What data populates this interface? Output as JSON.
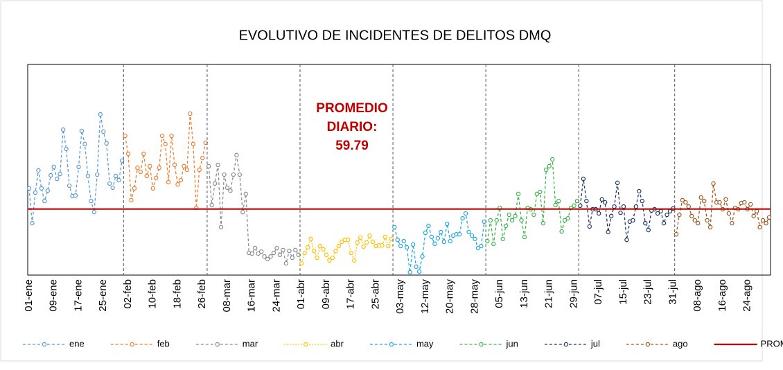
{
  "chart_data": {
    "type": "line",
    "title": "EVOLUTIVO DE INCIDENTES DE DELITOS DMQ",
    "ylim": [
      30,
      125
    ],
    "series": [
      {
        "name": "ene",
        "color": "#5b9bd5",
        "line_style": "dashed",
        "categories": [
          "01-ene",
          null,
          null,
          null,
          null,
          null,
          null,
          null,
          "09-ene",
          null,
          null,
          null,
          null,
          null,
          null,
          null,
          "17-ene",
          null,
          null,
          null,
          null,
          null,
          null,
          null,
          "25-ene",
          null,
          null,
          null,
          null,
          null,
          null
        ],
        "values": [
          69.1,
          53.4,
          67.2,
          77.2,
          69.1,
          63.4,
          68.1,
          75.0,
          78.8,
          73.4,
          75.6,
          95.6,
          86.9,
          70.3,
          65.6,
          65.9,
          78.8,
          95.0,
          89.1,
          74.7,
          63.4,
          58.4,
          75.3,
          102.5,
          94.7,
          89.4,
          71.3,
          69.4,
          74.7,
          72.8,
          81.6
        ]
      },
      {
        "name": "feb",
        "color": "#ed7d31",
        "line_style": "dashed",
        "categories": [
          null,
          "02-feb",
          null,
          null,
          null,
          null,
          null,
          null,
          null,
          "10-feb",
          null,
          null,
          null,
          null,
          null,
          null,
          null,
          "18-feb",
          null,
          null,
          null,
          null,
          null,
          null,
          null,
          "26-feb",
          null
        ],
        "values": [
          92.8,
          84.7,
          63.8,
          69.1,
          78.4,
          76.6,
          84.7,
          74.7,
          79.1,
          69.1,
          73.8,
          78.4,
          92.8,
          89.1,
          71.9,
          92.8,
          79.7,
          70.9,
          72.8,
          79.1,
          77.5,
          102.8,
          89.1,
          60.3,
          77.5,
          82.8,
          89.7
        ]
      },
      {
        "name": "mar",
        "color": "#8c8c8c",
        "line_style": "dashed",
        "categories": [
          null,
          null,
          null,
          null,
          null,
          null,
          "08-mar",
          null,
          null,
          null,
          null,
          null,
          null,
          null,
          "16-mar",
          null,
          null,
          null,
          null,
          null,
          null,
          null,
          "24-mar",
          null,
          null,
          null,
          null,
          null,
          null,
          null
        ],
        "values": [
          79.1,
          61.6,
          71.3,
          79.7,
          51.6,
          75.3,
          69.4,
          68.1,
          75.3,
          84.1,
          75.3,
          58.4,
          66.6,
          40.0,
          39.7,
          42.2,
          39.7,
          40.6,
          38.4,
          37.2,
          38.4,
          40.0,
          42.2,
          39.1,
          41.3,
          35.3,
          40.9,
          37.8,
          41.3,
          39.1
        ]
      },
      {
        "name": "abr",
        "color": "#ffc000",
        "line_style": "dotted",
        "categories": [
          "01-abr",
          null,
          null,
          null,
          null,
          null,
          null,
          null,
          "09-abr",
          null,
          null,
          null,
          null,
          null,
          null,
          null,
          "17-abr",
          null,
          null,
          null,
          null,
          null,
          null,
          null,
          "25-abr",
          null,
          null,
          null,
          null,
          null
        ],
        "values": [
          35.3,
          40.0,
          42.5,
          46.3,
          40.9,
          37.8,
          43.1,
          41.6,
          39.1,
          36.6,
          37.8,
          40.9,
          43.1,
          45.0,
          45.9,
          45.9,
          40.0,
          36.6,
          44.7,
          46.9,
          42.8,
          44.7,
          47.8,
          45.0,
          43.1,
          43.4,
          43.4,
          47.2,
          43.1,
          46.3
        ]
      },
      {
        "name": "may",
        "color": "#1ea7e1",
        "line_style": "dashed",
        "categories": [
          null,
          null,
          "03-may",
          null,
          null,
          null,
          null,
          null,
          null,
          null,
          "12-may",
          null,
          null,
          null,
          null,
          null,
          null,
          null,
          "20-may",
          null,
          null,
          null,
          null,
          null,
          null,
          null,
          "28-may",
          null,
          null,
          null
        ],
        "values": [
          51.6,
          45.9,
          43.1,
          45.3,
          42.5,
          31.3,
          43.8,
          33.8,
          31.6,
          38.4,
          49.1,
          52.2,
          47.2,
          44.1,
          46.6,
          49.4,
          45.0,
          53.1,
          45.3,
          47.8,
          48.4,
          48.4,
          55.6,
          57.8,
          49.4,
          47.8,
          46.3,
          42.2,
          43.1,
          54.1
        ]
      },
      {
        "name": "jun",
        "color": "#3cb44b",
        "line_style": "dashed",
        "categories": [
          null,
          null,
          null,
          null,
          "05-jun",
          null,
          null,
          null,
          null,
          null,
          null,
          null,
          "13-jun",
          null,
          null,
          null,
          null,
          null,
          null,
          null,
          "21-jun",
          null,
          null,
          null,
          null,
          null,
          null,
          null,
          "29-jun",
          null
        ],
        "values": [
          45.3,
          54.7,
          44.1,
          54.7,
          60.3,
          46.3,
          52.2,
          57.2,
          54.7,
          56.6,
          66.6,
          54.7,
          47.2,
          60.3,
          59.7,
          57.2,
          66.6,
          67.5,
          53.4,
          77.5,
          79.1,
          82.2,
          61.6,
          63.4,
          49.7,
          54.7,
          55.6,
          60.3,
          61.3,
          63.4
        ]
      },
      {
        "name": "jul",
        "color": "#1f3864",
        "line_style": "dashed",
        "categories": [
          null,
          null,
          null,
          null,
          null,
          null,
          "07-jul",
          null,
          null,
          null,
          null,
          null,
          null,
          null,
          "15-jul",
          null,
          null,
          null,
          null,
          null,
          null,
          null,
          "23-jul",
          null,
          null,
          null,
          null,
          null,
          null,
          null,
          "31-jul"
        ],
        "values": [
          61.3,
          73.4,
          63.4,
          51.9,
          59.7,
          59.7,
          57.8,
          64.1,
          62.8,
          49.4,
          56.6,
          60.9,
          71.6,
          58.1,
          60.9,
          45.9,
          54.1,
          54.7,
          60.9,
          67.8,
          63.4,
          53.4,
          50.3,
          59.1,
          59.7,
          57.8,
          58.8,
          53.4,
          57.2,
          58.8,
          60.0
        ]
      },
      {
        "name": "ago",
        "color": "#a0561e",
        "line_style": "dashed",
        "categories": [
          null,
          null,
          null,
          null,
          null,
          null,
          null,
          "08-ago",
          null,
          null,
          null,
          null,
          null,
          null,
          null,
          "16-ago",
          null,
          null,
          null,
          null,
          null,
          null,
          null,
          "24-ago",
          null,
          null,
          null,
          null,
          null,
          null,
          null
        ],
        "values": [
          48.4,
          57.2,
          63.8,
          62.8,
          60.9,
          56.6,
          54.7,
          53.4,
          65.0,
          63.4,
          54.7,
          51.6,
          71.3,
          62.8,
          62.8,
          59.7,
          64.1,
          57.8,
          53.4,
          60.3,
          59.7,
          62.5,
          62.8,
          59.7,
          61.9,
          56.6,
          58.8,
          51.6,
          54.7,
          53.4,
          56.0
        ]
      }
    ],
    "average": {
      "name": "PROMEDIO DIARIO",
      "color": "#c00000",
      "value": 59.79
    },
    "annotation": "PROMEDIO DIARIO:"
  }
}
